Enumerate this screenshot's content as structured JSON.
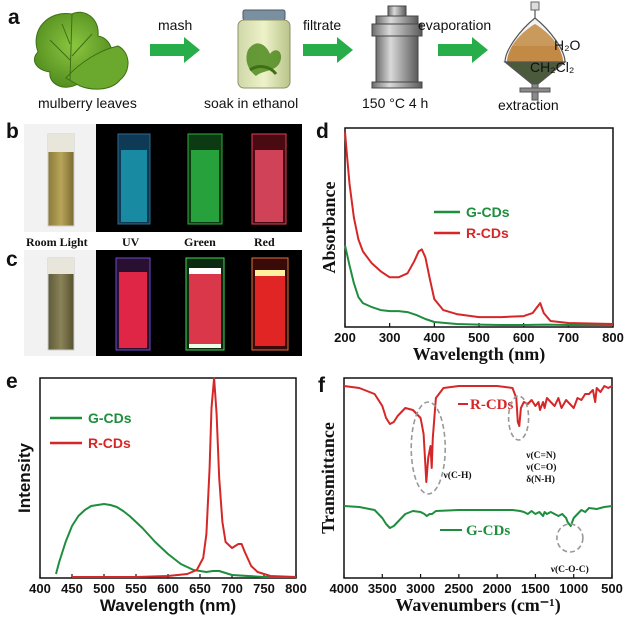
{
  "panel_a": {
    "letter": "a",
    "steps": [
      "mulberry leaves",
      "soak in ethanol",
      "150 °C 4 h",
      "extraction"
    ],
    "arrows": [
      "mash",
      "filtrate",
      "evaporation"
    ],
    "phase_upper": "H₂O",
    "phase_lower": "CH₂Cl₂"
  },
  "panel_b": {
    "letter": "b",
    "labels": [
      "Room Light",
      "UV",
      "Green",
      "Red"
    ]
  },
  "panel_c": {
    "letter": "c"
  },
  "panel_d": {
    "letter": "d"
  },
  "panel_e": {
    "letter": "e"
  },
  "panel_f": {
    "letter": "f"
  },
  "colors": {
    "g": "#1e8e3e",
    "r": "#d62728"
  },
  "chart_data": [
    {
      "id": "d",
      "type": "line",
      "xlabel": "Wavelength (nm)",
      "ylabel": "Absorbance",
      "xlim": [
        200,
        800
      ],
      "xticks": [
        200,
        300,
        400,
        500,
        600,
        700,
        800
      ],
      "ylim": [
        0,
        1
      ],
      "legend_position": "center",
      "series": [
        {
          "name": "G-CDs",
          "x": [
            200,
            210,
            220,
            230,
            240,
            260,
            280,
            300,
            320,
            340,
            360,
            380,
            400,
            450,
            500,
            550,
            600,
            650,
            700,
            800
          ],
          "y": [
            0.41,
            0.31,
            0.22,
            0.15,
            0.12,
            0.1,
            0.085,
            0.08,
            0.08,
            0.075,
            0.06,
            0.04,
            0.025,
            0.015,
            0.012,
            0.01,
            0.01,
            0.012,
            0.01,
            0.01
          ]
        },
        {
          "name": "R-CDs",
          "x": [
            200,
            205,
            210,
            220,
            230,
            240,
            260,
            280,
            300,
            320,
            340,
            355,
            365,
            372,
            380,
            390,
            400,
            420,
            450,
            500,
            550,
            600,
            620,
            630,
            637,
            645,
            660,
            700,
            800
          ],
          "y": [
            0.98,
            0.85,
            0.72,
            0.55,
            0.44,
            0.38,
            0.32,
            0.28,
            0.25,
            0.25,
            0.27,
            0.33,
            0.38,
            0.39,
            0.35,
            0.24,
            0.14,
            0.085,
            0.065,
            0.05,
            0.05,
            0.055,
            0.07,
            0.1,
            0.12,
            0.07,
            0.03,
            0.02,
            0.015
          ]
        }
      ]
    },
    {
      "id": "e",
      "type": "line",
      "xlabel": "Wavelength (nm)",
      "ylabel": "Intensity",
      "xlim": [
        400,
        800
      ],
      "xticks": [
        400,
        450,
        500,
        550,
        600,
        650,
        700,
        750,
        800
      ],
      "ylim": [
        0,
        1
      ],
      "legend_position": "top-left",
      "series": [
        {
          "name": "G-CDs",
          "x": [
            425,
            430,
            440,
            450,
            460,
            470,
            480,
            490,
            500,
            510,
            520,
            530,
            540,
            560,
            580,
            600,
            620,
            640,
            660,
            670,
            680,
            700,
            750,
            800
          ],
          "y": [
            0.02,
            0.08,
            0.18,
            0.26,
            0.31,
            0.34,
            0.36,
            0.365,
            0.37,
            0.365,
            0.355,
            0.335,
            0.31,
            0.25,
            0.18,
            0.12,
            0.07,
            0.04,
            0.03,
            0.035,
            0.035,
            0.015,
            0.005,
            0.005
          ]
        },
        {
          "name": "R-CDs",
          "x": [
            450,
            500,
            550,
            600,
            630,
            645,
            655,
            660,
            665,
            668,
            672,
            676,
            680,
            685,
            690,
            700,
            710,
            715,
            720,
            730,
            740,
            760,
            800
          ],
          "y": [
            0.005,
            0.005,
            0.005,
            0.01,
            0.02,
            0.04,
            0.1,
            0.22,
            0.55,
            0.85,
            1.0,
            0.82,
            0.5,
            0.28,
            0.18,
            0.15,
            0.17,
            0.17,
            0.13,
            0.06,
            0.03,
            0.01,
            0.005
          ]
        }
      ]
    },
    {
      "id": "f",
      "type": "line",
      "xlabel": "Wavenumbers (cm⁻¹)",
      "ylabel": "Transmittance",
      "xlim": [
        4000,
        500
      ],
      "xticks": [
        4000,
        3500,
        3000,
        2500,
        2000,
        1500,
        1000,
        500
      ],
      "ylim": [
        0,
        1
      ],
      "series": [
        {
          "name": "R-CDs",
          "x": [
            4000,
            3800,
            3600,
            3500,
            3450,
            3400,
            3350,
            3300,
            3200,
            3100,
            3000,
            2960,
            2940,
            2925,
            2900,
            2870,
            2855,
            2840,
            2800,
            2700,
            2500,
            2200,
            2000,
            1800,
            1750,
            1730,
            1710,
            1690,
            1650,
            1600,
            1550,
            1500,
            1460,
            1440,
            1400,
            1380,
            1350,
            1300,
            1250,
            1200,
            1160,
            1100,
            1050,
            1000,
            950,
            900,
            850,
            800,
            750,
            720,
            700,
            650,
            600,
            550,
            500
          ],
          "y": [
            0.96,
            0.95,
            0.92,
            0.86,
            0.8,
            0.77,
            0.78,
            0.81,
            0.85,
            0.84,
            0.8,
            0.72,
            0.58,
            0.48,
            0.6,
            0.66,
            0.55,
            0.7,
            0.9,
            0.95,
            0.96,
            0.96,
            0.96,
            0.95,
            0.9,
            0.78,
            0.76,
            0.85,
            0.88,
            0.87,
            0.89,
            0.86,
            0.88,
            0.84,
            0.88,
            0.85,
            0.9,
            0.88,
            0.86,
            0.9,
            0.85,
            0.89,
            0.87,
            0.85,
            0.9,
            0.89,
            0.92,
            0.92,
            0.94,
            0.88,
            0.95,
            0.93,
            0.96,
            0.95,
            0.96
          ]
        },
        {
          "name": "G-CDs",
          "x": [
            4000,
            3800,
            3600,
            3500,
            3450,
            3400,
            3350,
            3300,
            3200,
            3100,
            3000,
            2950,
            2920,
            2880,
            2850,
            2800,
            2500,
            2200,
            2000,
            1800,
            1700,
            1650,
            1600,
            1550,
            1500,
            1450,
            1400,
            1380,
            1350,
            1300,
            1250,
            1200,
            1150,
            1100,
            1080,
            1060,
            1040,
            1020,
            1000,
            950,
            900,
            850,
            800,
            700,
            600,
            500
          ],
          "y": [
            0.36,
            0.355,
            0.34,
            0.3,
            0.27,
            0.25,
            0.26,
            0.28,
            0.32,
            0.335,
            0.33,
            0.32,
            0.31,
            0.32,
            0.32,
            0.335,
            0.34,
            0.34,
            0.34,
            0.34,
            0.335,
            0.33,
            0.32,
            0.335,
            0.32,
            0.33,
            0.31,
            0.33,
            0.32,
            0.33,
            0.32,
            0.31,
            0.32,
            0.3,
            0.28,
            0.27,
            0.26,
            0.28,
            0.3,
            0.32,
            0.34,
            0.33,
            0.35,
            0.345,
            0.355,
            0.36
          ]
        }
      ],
      "annotations": [
        "ν(C-H)",
        "ν(C=N)",
        "ν(C=O)",
        "δ(N-H)",
        "ν(C-O-C)"
      ]
    }
  ]
}
